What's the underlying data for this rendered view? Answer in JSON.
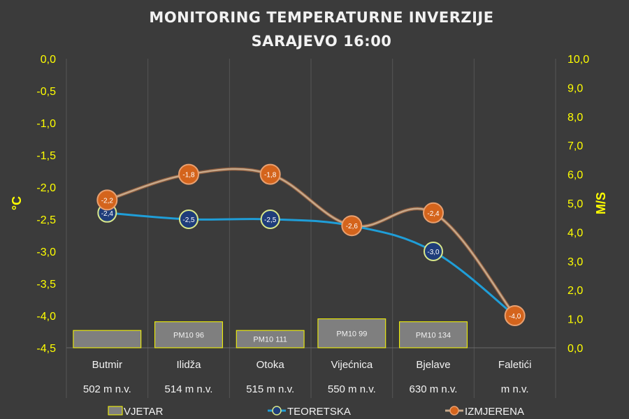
{
  "chart_data": {
    "type": "line+bar",
    "title": [
      "MONITORING TEMPERATURNE INVERZIJE",
      "SARAJEVO 16:00"
    ],
    "ylabel_left": "°C",
    "ylabel_right": "M/S",
    "ylim_left": [
      -4.5,
      0.0
    ],
    "ylim_right": [
      0.0,
      10.0
    ],
    "left_ticks": [
      "0,0",
      "-0,5",
      "-1,0",
      "-1,5",
      "-2,0",
      "-2,5",
      "-3,0",
      "-3,5",
      "-4,0",
      "-4,5"
    ],
    "right_ticks": [
      "10,0",
      "9,0",
      "8,0",
      "7,0",
      "6,0",
      "5,0",
      "4,0",
      "3,0",
      "2,0",
      "1,0",
      "0,0"
    ],
    "categories": [
      "Butmir",
      "Ilidža",
      "Otoka",
      "Vijećnica",
      "Bjelave",
      "Faletići"
    ],
    "altitudes": [
      "502 m n.v.",
      "514 m n.v.",
      "515 m n.v.",
      "550 m n.v.",
      "630 m n.v.",
      "m n.v."
    ],
    "series": [
      {
        "name": "VJETAR",
        "kind": "bar",
        "axis": "right",
        "values": [
          0.6,
          0.9,
          0.6,
          1.0,
          0.9,
          null
        ],
        "labels": [
          "",
          "PM10 96",
          "PM10 111",
          "PM10 99",
          "PM10 134",
          ""
        ],
        "color": "#7f7f7f",
        "edge_color": "#ffff00"
      },
      {
        "name": "TEORETSKA",
        "kind": "line",
        "axis": "left",
        "values": [
          -2.4,
          -2.5,
          -2.5,
          -2.6,
          -3.0,
          -4.0
        ],
        "labels": [
          "-2,4",
          "-2,5",
          "-2,5",
          "-2,6",
          "-3,0",
          ""
        ],
        "color": "#1f9ed8",
        "marker_fill": "#1f3d7a",
        "marker_edge": "#d9e88a"
      },
      {
        "name": "IZMJERENA",
        "kind": "line",
        "axis": "left",
        "values": [
          -2.2,
          -1.8,
          -1.8,
          -2.6,
          -2.4,
          -4.0
        ],
        "labels": [
          "-2,2",
          "-1,8",
          "-1,8",
          "-2,6",
          "-2,4",
          "-4,0"
        ],
        "color": "#c6a88a",
        "marker_fill": "#d4641c",
        "marker_edge": "#e8a070"
      }
    ],
    "grid": true,
    "legend_position": "bottom"
  }
}
